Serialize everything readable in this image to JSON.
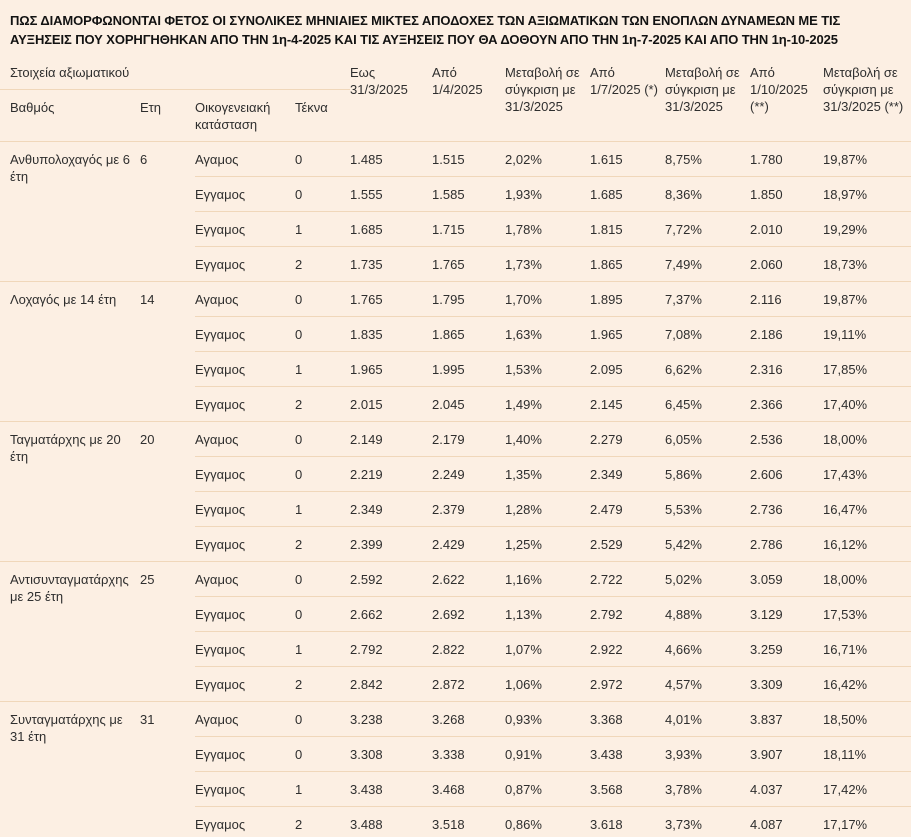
{
  "title": "ΠΩΣ ΔΙΑΜΟΡΦΩΝΟΝΤΑΙ ΦΕΤΟΣ ΟΙ ΣΥΝΟΛΙΚΕΣ ΜΗΝΙΑΙΕΣ ΜΙΚΤΕΣ ΑΠΟΔΟΧΕΣ ΤΩΝ ΑΞΙΩΜΑΤΙΚΩΝ ΤΩΝ ΕΝΟΠΛΩΝ ΔΥΝΑΜΕΩΝ ΜΕ ΤΙΣ ΑΥΞΗΣΕΙΣ ΠΟΥ ΧΟΡΗΓΗΘΗΚΑΝ ΑΠΟ ΤΗΝ 1η-4-2025 ΚΑΙ ΤΙΣ ΑΥΞΗΣΕΙΣ ΠΟΥ ΘΑ ΔΟΘΟΥΝ ΑΠΟ ΤΗΝ 1η-7-2025 ΚΑΙ ΑΠΟ ΤΗΝ 1η-10-2025",
  "colors": {
    "background": "#fcefe3",
    "divider": "#f0d7ba",
    "text": "#2e2e2e"
  },
  "table": {
    "header_group_label": "Στοιχεία αξιωματικού",
    "sub_columns": {
      "rank": "Βαθμός",
      "years": "Ετη",
      "marital_status": "Οικογενειακή\nκατάσταση",
      "children": "Τέκνα"
    },
    "value_columns": [
      "Εως\n31/3/2025",
      "Από\n1/4/2025",
      "Μεταβολή σε\nσύγκριση με\n31/3/2025",
      "Από\n1/7/2025 (*)",
      "Μεταβολή σε\nσύγκριση με\n31/3/2025",
      "Από\n1/10/2025\n(**)",
      "Μεταβολή σε\nσύγκριση με\n31/3/2025 (**)"
    ],
    "groups": [
      {
        "rank": "Ανθυπολοχαγός με 6 έτη",
        "years": "6",
        "rows": [
          {
            "status": "Αγαμος",
            "children": "0",
            "values": [
              "1.485",
              "1.515",
              "2,02%",
              "1.615",
              "8,75%",
              "1.780",
              "19,87%"
            ]
          },
          {
            "status": "Εγγαμος",
            "children": "0",
            "values": [
              "1.555",
              "1.585",
              "1,93%",
              "1.685",
              "8,36%",
              "1.850",
              "18,97%"
            ]
          },
          {
            "status": "Εγγαμος",
            "children": "1",
            "values": [
              "1.685",
              "1.715",
              "1,78%",
              "1.815",
              "7,72%",
              "2.010",
              "19,29%"
            ]
          },
          {
            "status": "Εγγαμος",
            "children": "2",
            "values": [
              "1.735",
              "1.765",
              "1,73%",
              "1.865",
              "7,49%",
              "2.060",
              "18,73%"
            ]
          }
        ]
      },
      {
        "rank": "Λοχαγός με 14 έτη",
        "years": "14",
        "rows": [
          {
            "status": "Αγαμος",
            "children": "0",
            "values": [
              "1.765",
              "1.795",
              "1,70%",
              "1.895",
              "7,37%",
              "2.116",
              "19,87%"
            ]
          },
          {
            "status": "Εγγαμος",
            "children": "0",
            "values": [
              "1.835",
              "1.865",
              "1,63%",
              "1.965",
              "7,08%",
              "2.186",
              "19,11%"
            ]
          },
          {
            "status": "Εγγαμος",
            "children": "1",
            "values": [
              "1.965",
              "1.995",
              "1,53%",
              "2.095",
              "6,62%",
              "2.316",
              "17,85%"
            ]
          },
          {
            "status": "Εγγαμος",
            "children": "2",
            "values": [
              "2.015",
              "2.045",
              "1,49%",
              "2.145",
              "6,45%",
              "2.366",
              "17,40%"
            ]
          }
        ]
      },
      {
        "rank": "Ταγματάρχης με 20 έτη",
        "years": "20",
        "rows": [
          {
            "status": "Αγαμος",
            "children": "0",
            "values": [
              "2.149",
              "2.179",
              "1,40%",
              "2.279",
              "6,05%",
              "2.536",
              "18,00%"
            ]
          },
          {
            "status": "Εγγαμος",
            "children": "0",
            "values": [
              "2.219",
              "2.249",
              "1,35%",
              "2.349",
              "5,86%",
              "2.606",
              "17,43%"
            ]
          },
          {
            "status": "Εγγαμος",
            "children": "1",
            "values": [
              "2.349",
              "2.379",
              "1,28%",
              "2.479",
              "5,53%",
              "2.736",
              "16,47%"
            ]
          },
          {
            "status": "Εγγαμος",
            "children": "2",
            "values": [
              "2.399",
              "2.429",
              "1,25%",
              "2.529",
              "5,42%",
              "2.786",
              "16,12%"
            ]
          }
        ]
      },
      {
        "rank": "Αντισυνταγματάρχης με 25 έτη",
        "years": "25",
        "rows": [
          {
            "status": "Αγαμος",
            "children": "0",
            "values": [
              "2.592",
              "2.622",
              "1,16%",
              "2.722",
              "5,02%",
              "3.059",
              "18,00%"
            ]
          },
          {
            "status": "Εγγαμος",
            "children": "0",
            "values": [
              "2.662",
              "2.692",
              "1,13%",
              "2.792",
              "4,88%",
              "3.129",
              "17,53%"
            ]
          },
          {
            "status": "Εγγαμος",
            "children": "1",
            "values": [
              "2.792",
              "2.822",
              "1,07%",
              "2.922",
              "4,66%",
              "3.259",
              "16,71%"
            ]
          },
          {
            "status": "Εγγαμος",
            "children": "2",
            "values": [
              "2.842",
              "2.872",
              "1,06%",
              "2.972",
              "4,57%",
              "3.309",
              "16,42%"
            ]
          }
        ]
      },
      {
        "rank": "Συνταγματάρχης με 31 έτη",
        "years": "31",
        "rows": [
          {
            "status": "Αγαμος",
            "children": "0",
            "values": [
              "3.238",
              "3.268",
              "0,93%",
              "3.368",
              "4,01%",
              "3.837",
              "18,50%"
            ]
          },
          {
            "status": "Εγγαμος",
            "children": "0",
            "values": [
              "3.308",
              "3.338",
              "0,91%",
              "3.438",
              "3,93%",
              "3.907",
              "18,11%"
            ]
          },
          {
            "status": "Εγγαμος",
            "children": "1",
            "values": [
              "3.438",
              "3.468",
              "0,87%",
              "3.568",
              "3,78%",
              "4.037",
              "17,42%"
            ]
          },
          {
            "status": "Εγγαμος",
            "children": "2",
            "values": [
              "3.488",
              "3.518",
              "0,86%",
              "3.618",
              "3,73%",
              "4.087",
              "17,17%"
            ]
          }
        ]
      }
    ]
  }
}
